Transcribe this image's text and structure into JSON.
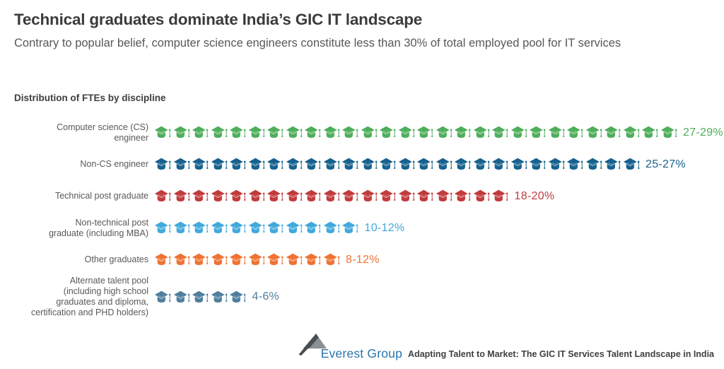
{
  "header": {
    "title": "Technical graduates dominate India’s GIC IT landscape",
    "subtitle": "Contrary to popular belief, computer science engineers constitute less than 30% of total employed pool for IT services"
  },
  "section": {
    "heading": "Distribution of FTEs by discipline"
  },
  "chart_data": {
    "type": "bar",
    "subtype": "pictogram",
    "icon": "graduation-cap-icon",
    "title": "Distribution of FTEs by discipline",
    "unit": "% of total employed FTE pool",
    "one_icon_equals_percent": 1,
    "categories": [
      "Computer science (CS) engineer",
      "Non-CS engineer",
      "Technical post graduate",
      "Non-technical post graduate (including MBA)",
      "Other graduates",
      "Alternate talent pool (including high school graduates and diploma, certification and PHD holders)"
    ],
    "values": [
      [
        27,
        29
      ],
      [
        25,
        27
      ],
      [
        18,
        20
      ],
      [
        10,
        12
      ],
      [
        8,
        12
      ],
      [
        4,
        6
      ]
    ],
    "value_labels": [
      "27-29%",
      "25-27%",
      "18-20%",
      "10-12%",
      "8-12%",
      "4-6%"
    ],
    "icon_counts": [
      28,
      26,
      19,
      11,
      10,
      5
    ],
    "colors": [
      "#4FAE5B",
      "#17618E",
      "#C23B3C",
      "#41A9DC",
      "#EF7232",
      "#4E7E9D"
    ],
    "rows": [
      {
        "label": "Computer science (CS) engineer",
        "label_lines": [
          "Computer science (CS)",
          "engineer"
        ],
        "icon_count": 28,
        "value_label": "27-29%",
        "color": "#4FAE5B"
      },
      {
        "label": "Non-CS engineer",
        "label_lines": [
          "Non-CS engineer"
        ],
        "icon_count": 26,
        "value_label": "25-27%",
        "color": "#17618E"
      },
      {
        "label": "Technical post graduate",
        "label_lines": [
          "Technical post graduate"
        ],
        "icon_count": 19,
        "value_label": "18-20%",
        "color": "#C23B3C"
      },
      {
        "label": "Non-technical post graduate (including MBA)",
        "label_lines": [
          "Non-technical post",
          "graduate (including MBA)"
        ],
        "icon_count": 11,
        "value_label": "10-12%",
        "color": "#41A9DC"
      },
      {
        "label": "Other graduates",
        "label_lines": [
          "Other graduates"
        ],
        "icon_count": 10,
        "value_label": "8-12%",
        "color": "#EF7232"
      },
      {
        "label": "Alternate talent pool (including high school graduates and diploma, certification and PHD holders)",
        "label_lines": [
          "Alternate talent pool",
          "(including high school",
          "graduates and diploma,",
          "certification and PHD holders)"
        ],
        "icon_count": 5,
        "value_label": "4-6%",
        "color": "#4E7E9D"
      }
    ]
  },
  "footer": {
    "logo_text": "Everest Group",
    "logo_color": "#2B76AC",
    "tagline": "Adapting Talent to Market: The GIC IT Services Talent Landscape in India"
  }
}
